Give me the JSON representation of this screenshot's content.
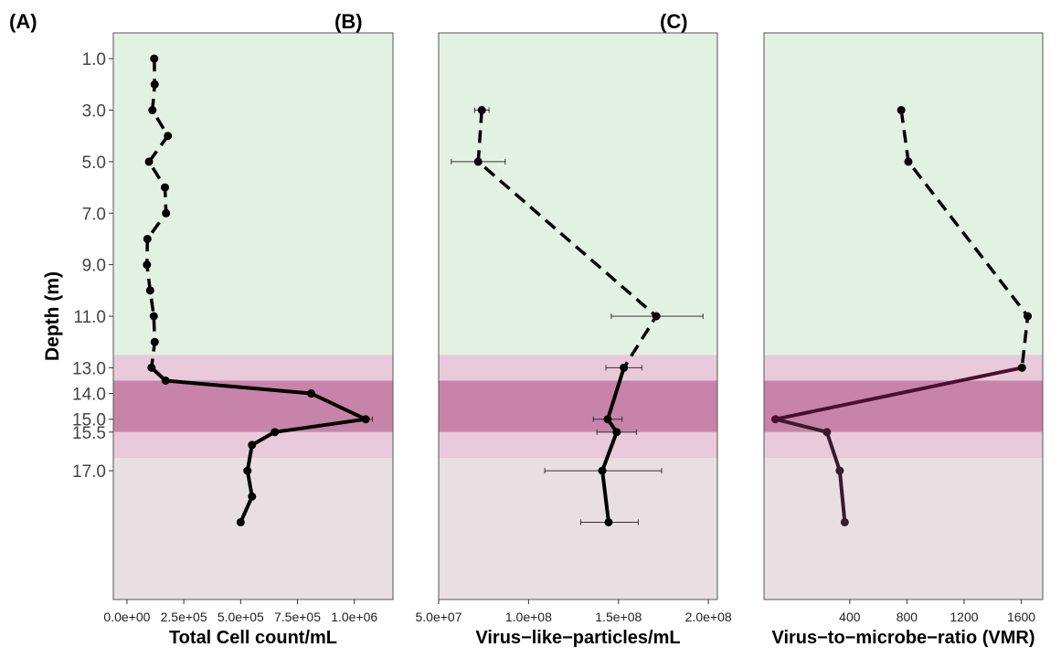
{
  "zones": [
    {
      "from": 0,
      "to": 12.5,
      "color": "#e3f1e3"
    },
    {
      "from": 12.5,
      "to": 13.5,
      "color": "#e8cadb"
    },
    {
      "from": 13.5,
      "to": 15.5,
      "color": "#c784a8"
    },
    {
      "from": 15.5,
      "to": 16.5,
      "color": "#e8cadb"
    },
    {
      "from": 16.5,
      "to": 22.0,
      "color": "#e8dfe3"
    }
  ],
  "y_axis": {
    "label": "Depth (m)",
    "range": [
      0,
      22
    ],
    "ticks": [
      {
        "value": 1.0,
        "label": "1.0"
      },
      {
        "value": 3.0,
        "label": "3.0"
      },
      {
        "value": 5.0,
        "label": "5.0"
      },
      {
        "value": 7.0,
        "label": "7.0"
      },
      {
        "value": 9.0,
        "label": "9.0"
      },
      {
        "value": 11.0,
        "label": "11.0"
      },
      {
        "value": 13.0,
        "label": "13.0"
      },
      {
        "value": 14.0,
        "label": "14.0"
      },
      {
        "value": 15.0,
        "label": "15.0"
      },
      {
        "value": 15.5,
        "label": "15.5"
      },
      {
        "value": 17.0,
        "label": "17.0"
      }
    ]
  },
  "chart_data": [
    {
      "panel": "(A)",
      "type": "line",
      "xlabel": "Total Cell count/mL",
      "xlim": [
        -60000,
        1170000
      ],
      "xticks": [
        {
          "value": 0,
          "label": "0.0e+00"
        },
        {
          "value": 250000,
          "label": "2.5e+05"
        },
        {
          "value": 500000,
          "label": "5.0e+05"
        },
        {
          "value": 750000,
          "label": "7.5e+05"
        },
        {
          "value": 1000000,
          "label": "1.0e+06"
        }
      ],
      "color": "#000000",
      "segments": [
        {
          "dashed": true,
          "points": [
            [
              120000,
              1.0
            ],
            [
              122000,
              2.0
            ],
            [
              112000,
              3.0
            ],
            [
              180000,
              4.0
            ],
            [
              97000,
              5.0
            ],
            [
              167000,
              6.0
            ],
            [
              172000,
              7.0
            ],
            [
              90000,
              8.0
            ],
            [
              88000,
              9.0
            ],
            [
              102000,
              10.0
            ],
            [
              118000,
              11.0
            ],
            [
              122000,
              12.0
            ],
            [
              108000,
              13.0
            ]
          ]
        },
        {
          "dashed": false,
          "points": [
            [
              108000,
              13.0
            ],
            [
              170000,
              13.5
            ],
            [
              810000,
              14.0
            ],
            [
              1050000,
              15.0
            ],
            [
              650000,
              15.5
            ],
            [
              550000,
              16.0
            ],
            [
              530000,
              17.0
            ],
            [
              550000,
              18.0
            ],
            [
              500000,
              19.0
            ]
          ]
        }
      ],
      "error_bars": [
        {
          "x": 1050000,
          "y": 15.0,
          "low": 1025000,
          "high": 1080000
        }
      ]
    },
    {
      "panel": "(B)",
      "type": "line",
      "xlabel": "Virus−like−particles/mL",
      "xlim": [
        50000000,
        205000000
      ],
      "xticks": [
        {
          "value": 50000000,
          "label": "5.0e+07"
        },
        {
          "value": 100000000,
          "label": "1.0e+08"
        },
        {
          "value": 150000000,
          "label": "1.5e+08"
        },
        {
          "value": 200000000,
          "label": "2.0e+08"
        }
      ],
      "color": "#000000",
      "segments": [
        {
          "dashed": true,
          "points": [
            [
              74000000,
              3.0
            ],
            [
              72000000,
              5.0
            ],
            [
              171000000,
              11.0
            ],
            [
              153000000,
              13.0
            ]
          ]
        },
        {
          "dashed": false,
          "points": [
            [
              153000000,
              13.0
            ],
            [
              144000000,
              15.0
            ],
            [
              149000000,
              15.5
            ],
            [
              141000000,
              17.0
            ],
            [
              144500000,
              19.0
            ]
          ]
        }
      ],
      "error_bars": [
        {
          "x": 74000000,
          "y": 3.0,
          "low": 70000000,
          "high": 78000000
        },
        {
          "x": 72000000,
          "y": 5.0,
          "low": 57000000,
          "high": 87000000
        },
        {
          "x": 171000000,
          "y": 11.0,
          "low": 146000000,
          "high": 197000000
        },
        {
          "x": 153000000,
          "y": 13.0,
          "low": 143000000,
          "high": 163000000
        },
        {
          "x": 144000000,
          "y": 15.0,
          "low": 136000000,
          "high": 152000000
        },
        {
          "x": 149000000,
          "y": 15.5,
          "low": 138000000,
          "high": 160000000
        },
        {
          "x": 141000000,
          "y": 17.0,
          "low": 109000000,
          "high": 174000000
        },
        {
          "x": 144500000,
          "y": 19.0,
          "low": 129000000,
          "high": 161000000
        }
      ]
    },
    {
      "panel": "(C)",
      "type": "line",
      "xlabel": "Virus−to−microbe−ratio (VMR)",
      "xlim": [
        -200,
        1750
      ],
      "xticks": [
        {
          "value": 400,
          "label": "400"
        },
        {
          "value": 800,
          "label": "800"
        },
        {
          "value": 1200,
          "label": "1200"
        },
        {
          "value": 1600,
          "label": "1600"
        }
      ],
      "color": "#000000",
      "segments": [
        {
          "dashed": true,
          "color": "#000000",
          "points": [
            [
              760,
              3.0
            ],
            [
              810,
              5.0
            ],
            [
              1645,
              11.0
            ],
            [
              1605,
              13.0
            ]
          ]
        },
        {
          "dashed": false,
          "color": "#4a0f2e",
          "points": [
            [
              1605,
              13.0
            ],
            [
              -120,
              15.0
            ]
          ]
        },
        {
          "dashed": false,
          "color": "#3a1a2e",
          "points": [
            [
              -120,
              15.0
            ],
            [
              240,
              15.5
            ],
            [
              330,
              17.0
            ],
            [
              365,
              19.0
            ]
          ]
        }
      ],
      "error_bars": []
    }
  ]
}
